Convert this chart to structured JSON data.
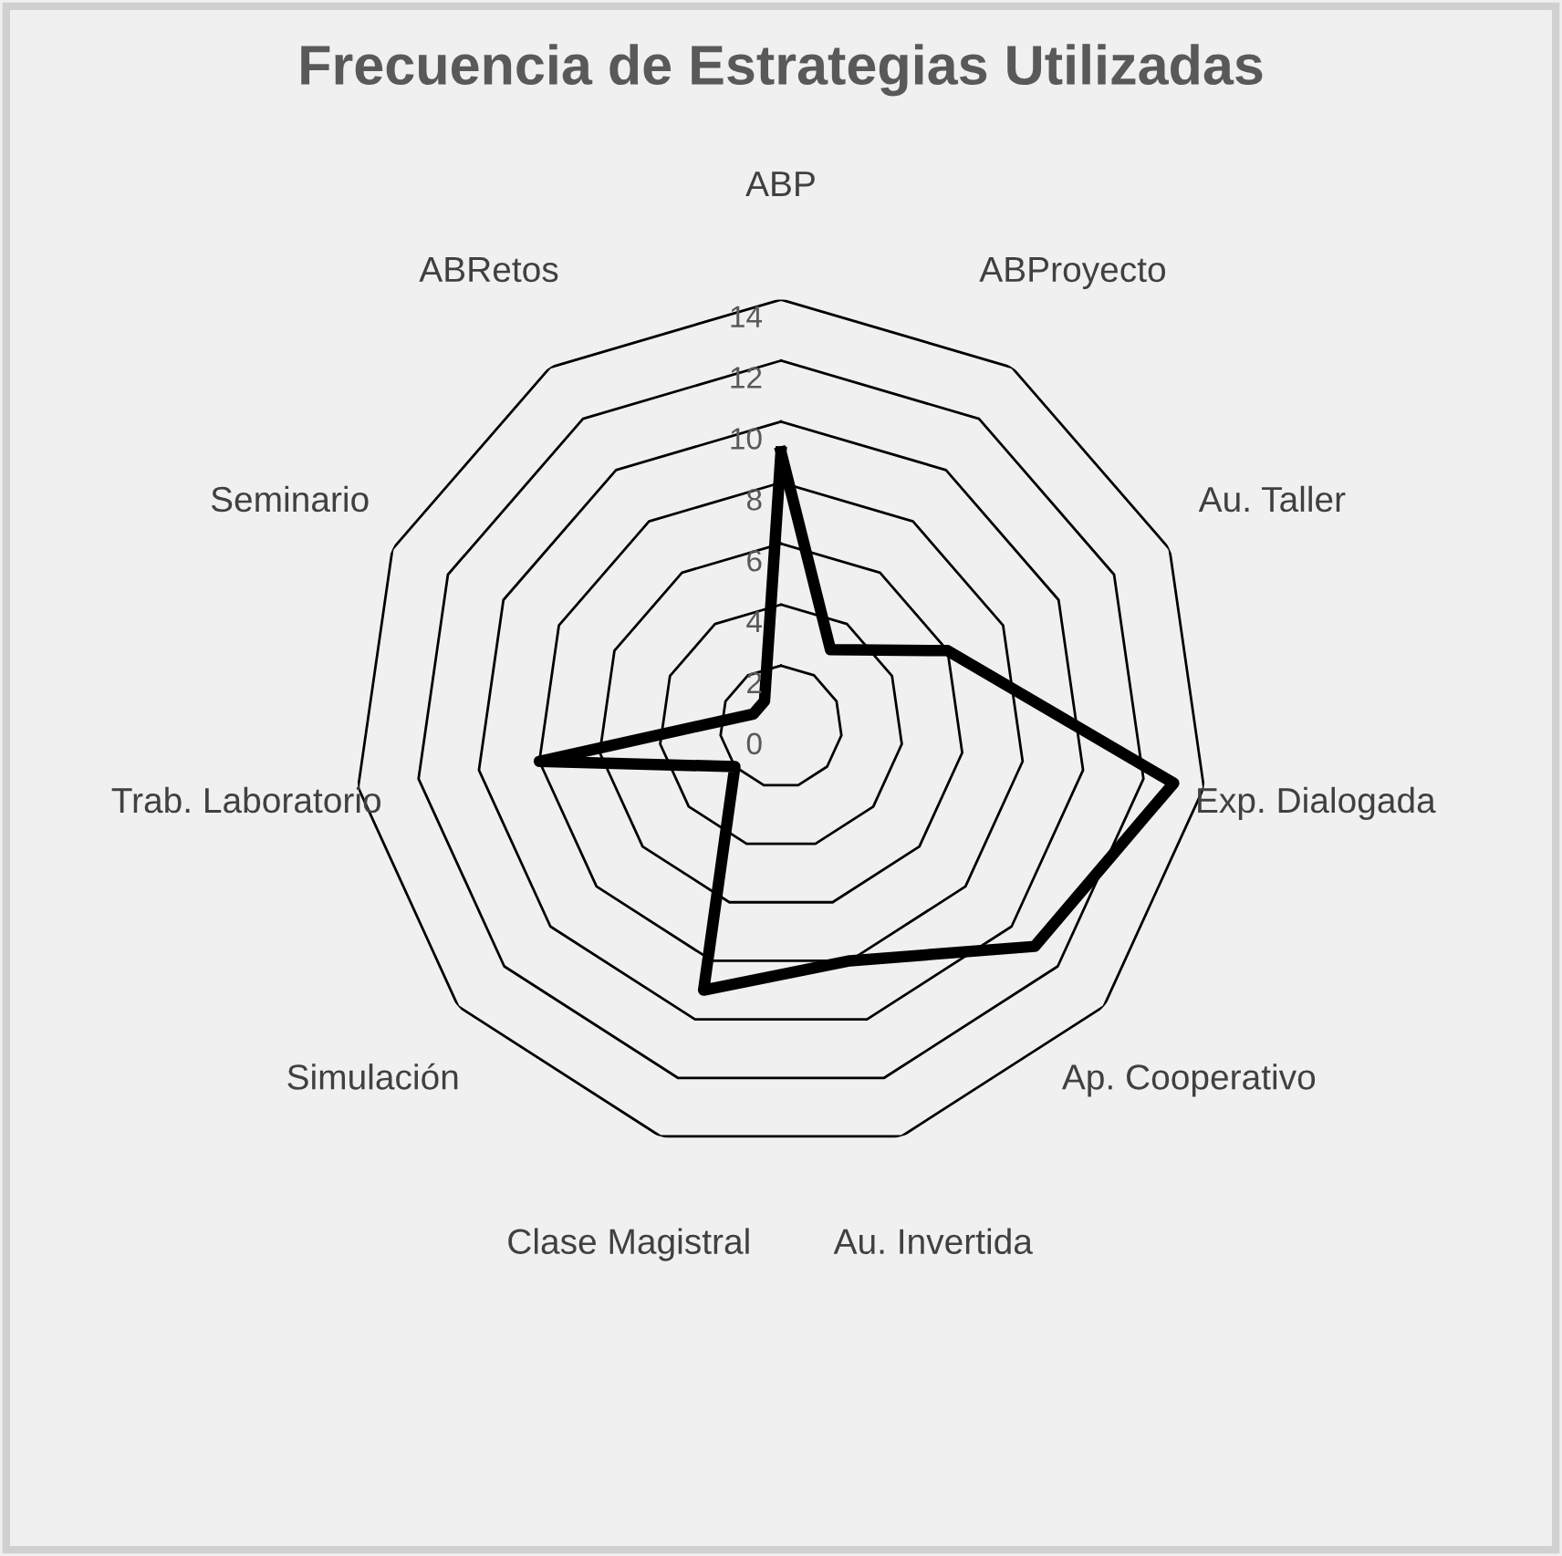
{
  "chart_data": {
    "type": "radar",
    "title": "Frecuencia de Estrategias Utilizadas",
    "categories": [
      "ABP",
      "ABProyecto",
      "Au. Taller",
      "Exp. Dialogada",
      "Ap. Cooperativo",
      "Au. Invertida",
      "Clase Magistral",
      "Simulación",
      "Trab. Laboratorio",
      "Seminario",
      "ABRetos"
    ],
    "series": [
      {
        "color": "#000000",
        "values": [
          9,
          3,
          6,
          13,
          11,
          8,
          9,
          2,
          8,
          1,
          1
        ]
      }
    ],
    "ylim": [
      0,
      14
    ],
    "yticks": [
      0,
      2,
      4,
      6,
      8,
      10,
      12,
      14
    ],
    "grid": true,
    "marker": "none",
    "line_style": "solid"
  }
}
